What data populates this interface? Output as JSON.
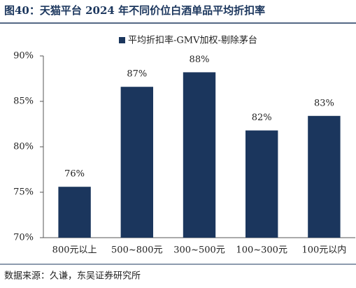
{
  "chart_data": {
    "type": "bar",
    "title": "图40：天猫平台 2024 年不同价位白酒单品平均折扣率",
    "source": "数据来源：久谦，东吴证券研究所",
    "categories": [
      "800元以上",
      "500~800元",
      "300~500元",
      "100~300元",
      "100元以内"
    ],
    "series": [
      {
        "name": "平均折扣率-GMV加权-剔除茅台",
        "color": "#1b365d",
        "values": [
          75.6,
          86.6,
          88.2,
          81.8,
          83.4
        ],
        "value_labels": [
          "76%",
          "87%",
          "88%",
          "82%",
          "83%"
        ]
      }
    ],
    "ylim": [
      70,
      90
    ],
    "yticks": [
      {
        "value": 70,
        "label": "70%"
      },
      {
        "value": 75,
        "label": "75%"
      },
      {
        "value": 80,
        "label": "80%"
      },
      {
        "value": 85,
        "label": "85%"
      },
      {
        "value": 90,
        "label": "90%"
      }
    ]
  }
}
